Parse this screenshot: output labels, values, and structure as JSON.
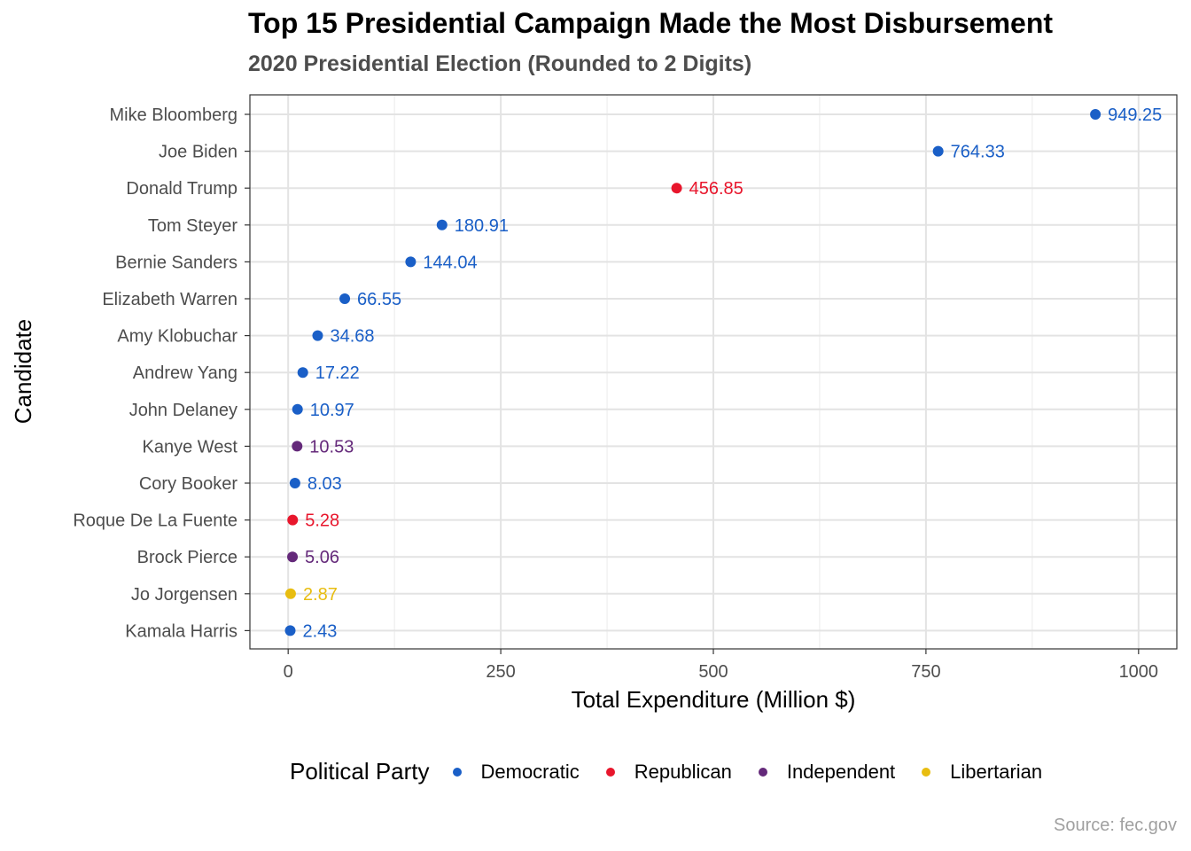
{
  "chart_data": {
    "type": "scatter",
    "title": "Top 15 Presidential Campaign Made the Most Disbursement",
    "subtitle": "2020 Presidential Election (Rounded to 2 Digits)",
    "xlabel": "Total Expenditure (Million $)",
    "ylabel": "Candidate",
    "xlim": [
      -45,
      1045
    ],
    "x_ticks": [
      0,
      250,
      500,
      750,
      1000
    ],
    "x_tick_labels": [
      "0",
      "250",
      "500",
      "750",
      "1000"
    ],
    "grid": true,
    "legend_position": "bottom",
    "legend_title": "Political Party",
    "caption": "Source: fec.gov",
    "colors": {
      "Democratic": "#1a5fc7",
      "Republican": "#e8162c",
      "Independent": "#64297a",
      "Libertarian": "#e8bd10"
    },
    "legend": [
      "Democratic",
      "Republican",
      "Independent",
      "Libertarian"
    ],
    "points": [
      {
        "candidate": "Mike Bloomberg",
        "value": 949.25,
        "label": "949.25",
        "party": "Democratic"
      },
      {
        "candidate": "Joe Biden",
        "value": 764.33,
        "label": "764.33",
        "party": "Democratic"
      },
      {
        "candidate": "Donald Trump",
        "value": 456.85,
        "label": "456.85",
        "party": "Republican"
      },
      {
        "candidate": "Tom Steyer",
        "value": 180.91,
        "label": "180.91",
        "party": "Democratic"
      },
      {
        "candidate": "Bernie Sanders",
        "value": 144.04,
        "label": "144.04",
        "party": "Democratic"
      },
      {
        "candidate": "Elizabeth Warren",
        "value": 66.55,
        "label": "66.55",
        "party": "Democratic"
      },
      {
        "candidate": "Amy Klobuchar",
        "value": 34.68,
        "label": "34.68",
        "party": "Democratic"
      },
      {
        "candidate": "Andrew Yang",
        "value": 17.22,
        "label": "17.22",
        "party": "Democratic"
      },
      {
        "candidate": "John Delaney",
        "value": 10.97,
        "label": "10.97",
        "party": "Democratic"
      },
      {
        "candidate": "Kanye West",
        "value": 10.53,
        "label": "10.53",
        "party": "Independent"
      },
      {
        "candidate": "Cory Booker",
        "value": 8.03,
        "label": "8.03",
        "party": "Democratic"
      },
      {
        "candidate": "Roque De La Fuente",
        "value": 5.28,
        "label": "5.28",
        "party": "Republican"
      },
      {
        "candidate": "Brock Pierce",
        "value": 5.06,
        "label": "5.06",
        "party": "Independent"
      },
      {
        "candidate": "Jo Jorgensen",
        "value": 2.87,
        "label": "2.87",
        "party": "Libertarian"
      },
      {
        "candidate": "Kamala Harris",
        "value": 2.43,
        "label": "2.43",
        "party": "Democratic"
      }
    ]
  }
}
